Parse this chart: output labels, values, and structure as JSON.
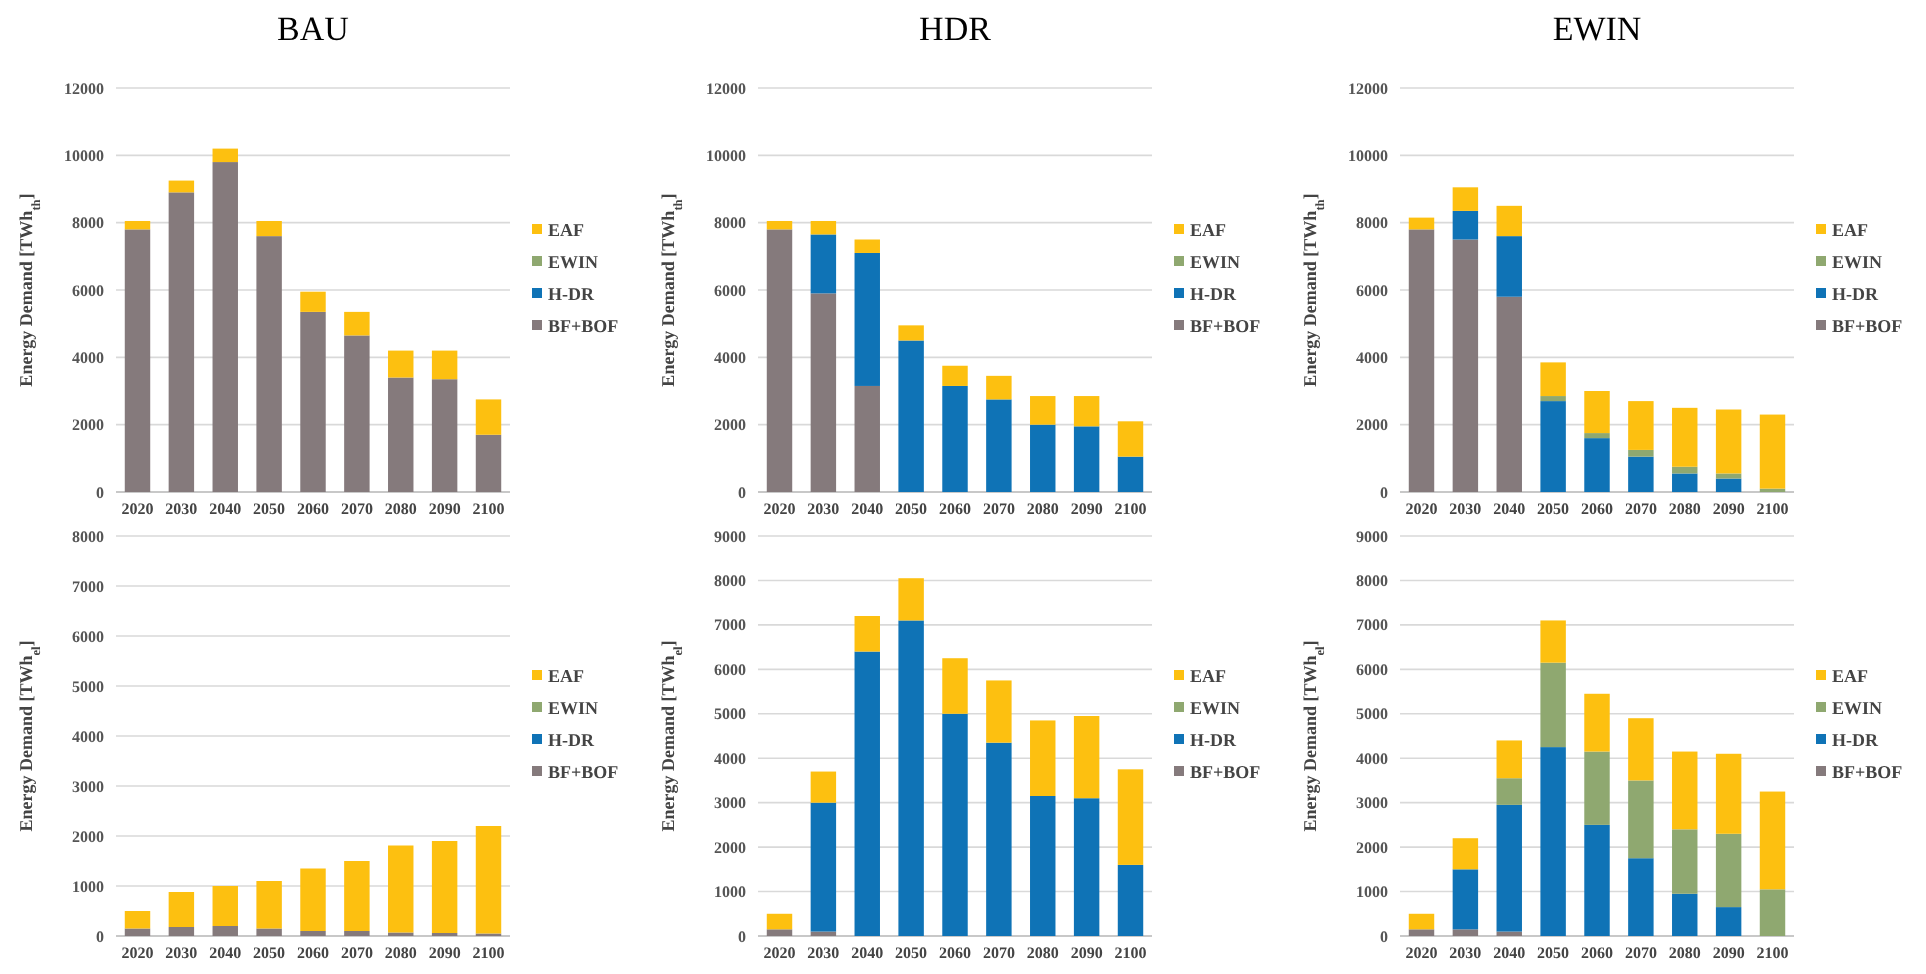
{
  "chart_data": [
    {
      "type": "bar",
      "title": "BAU",
      "ylabel": "Energy Demand [TWh$_{th}$]",
      "categories": [
        "2020",
        "2030",
        "2040",
        "2050",
        "2060",
        "2070",
        "2080",
        "2090",
        "2100"
      ],
      "stacked": true,
      "ylim": [
        0,
        12000
      ],
      "yticks": [
        0,
        2000,
        4000,
        6000,
        8000,
        10000,
        12000
      ],
      "grid": "y",
      "legend": "right",
      "series": [
        {
          "name": "BF+BOF",
          "color": "#857a7c",
          "values": [
            7800,
            8900,
            9800,
            7600,
            5350,
            4650,
            3400,
            3350,
            1700
          ]
        },
        {
          "name": "H-DR",
          "color": "#0f73b6",
          "values": [
            0,
            0,
            0,
            0,
            0,
            0,
            0,
            0,
            0
          ]
        },
        {
          "name": "EWIN",
          "color": "#8fa870",
          "values": [
            0,
            0,
            0,
            0,
            0,
            0,
            0,
            0,
            0
          ]
        },
        {
          "name": "EAF",
          "color": "#fdc010",
          "values": [
            250,
            350,
            400,
            450,
            600,
            700,
            800,
            850,
            1050
          ]
        }
      ]
    },
    {
      "type": "bar",
      "title": "HDR",
      "ylabel": "Energy Demand [TWh$_{th}$]",
      "categories": [
        "2020",
        "2030",
        "2040",
        "2050",
        "2060",
        "2070",
        "2080",
        "2090",
        "2100"
      ],
      "stacked": true,
      "ylim": [
        0,
        12000
      ],
      "yticks": [
        0,
        2000,
        4000,
        6000,
        8000,
        10000,
        12000
      ],
      "grid": "y",
      "legend": "right",
      "series": [
        {
          "name": "BF+BOF",
          "color": "#857a7c",
          "values": [
            7800,
            5900,
            3150,
            0,
            0,
            0,
            0,
            0,
            0
          ]
        },
        {
          "name": "H-DR",
          "color": "#0f73b6",
          "values": [
            0,
            1750,
            3950,
            4500,
            3150,
            2750,
            2000,
            1950,
            1050
          ]
        },
        {
          "name": "EWIN",
          "color": "#8fa870",
          "values": [
            0,
            0,
            0,
            0,
            0,
            0,
            0,
            0,
            0
          ]
        },
        {
          "name": "EAF",
          "color": "#fdc010",
          "values": [
            250,
            400,
            400,
            450,
            600,
            700,
            850,
            900,
            1050
          ]
        }
      ]
    },
    {
      "type": "bar",
      "title": "EWIN",
      "ylabel": "Energy Demand [TWh$_{th}$]",
      "categories": [
        "2020",
        "2030",
        "2040",
        "2050",
        "2060",
        "2070",
        "2080",
        "2090",
        "2100"
      ],
      "stacked": true,
      "ylim": [
        0,
        12000
      ],
      "yticks": [
        0,
        2000,
        4000,
        6000,
        8000,
        10000,
        12000
      ],
      "grid": "y",
      "legend": "right",
      "series": [
        {
          "name": "BF+BOF",
          "color": "#857a7c",
          "values": [
            7800,
            7500,
            5800,
            0,
            0,
            0,
            0,
            0,
            0
          ]
        },
        {
          "name": "H-DR",
          "color": "#0f73b6",
          "values": [
            0,
            850,
            1800,
            2700,
            1600,
            1050,
            550,
            400,
            0
          ]
        },
        {
          "name": "EWIN",
          "color": "#8fa870",
          "values": [
            0,
            0,
            0,
            150,
            150,
            200,
            200,
            150,
            100
          ]
        },
        {
          "name": "EAF",
          "color": "#fdc010",
          "values": [
            350,
            700,
            900,
            1000,
            1250,
            1450,
            1750,
            1900,
            2200
          ]
        }
      ]
    },
    {
      "type": "bar",
      "ylabel": "Energy Demand [TWh$_{el}$]",
      "categories": [
        "2020",
        "2030",
        "2040",
        "2050",
        "2060",
        "2070",
        "2080",
        "2090",
        "2100"
      ],
      "stacked": true,
      "ylim": [
        0,
        8000
      ],
      "yticks": [
        0,
        1000,
        2000,
        3000,
        4000,
        5000,
        6000,
        7000,
        8000
      ],
      "grid": "y",
      "legend": "right",
      "series": [
        {
          "name": "BF+BOF",
          "color": "#857a7c",
          "values": [
            150,
            180,
            200,
            150,
            100,
            100,
            70,
            60,
            50
          ]
        },
        {
          "name": "H-DR",
          "color": "#0f73b6",
          "values": [
            0,
            0,
            0,
            0,
            0,
            0,
            0,
            0,
            0
          ]
        },
        {
          "name": "EWIN",
          "color": "#8fa870",
          "values": [
            0,
            0,
            0,
            0,
            0,
            0,
            0,
            0,
            0
          ]
        },
        {
          "name": "EAF",
          "color": "#fdc010",
          "values": [
            350,
            700,
            800,
            950,
            1250,
            1400,
            1740,
            1840,
            2150
          ]
        }
      ]
    },
    {
      "type": "bar",
      "ylabel": "Energy Demand [TWh$_{el}$]",
      "categories": [
        "2020",
        "2030",
        "2040",
        "2050",
        "2060",
        "2070",
        "2080",
        "2090",
        "2100"
      ],
      "stacked": true,
      "ylim": [
        0,
        9000
      ],
      "yticks": [
        0,
        1000,
        2000,
        3000,
        4000,
        5000,
        6000,
        7000,
        8000,
        9000
      ],
      "grid": "y",
      "legend": "right",
      "series": [
        {
          "name": "BF+BOF",
          "color": "#857a7c",
          "values": [
            150,
            100,
            0,
            0,
            0,
            0,
            0,
            0,
            0
          ]
        },
        {
          "name": "H-DR",
          "color": "#0f73b6",
          "values": [
            0,
            2900,
            6400,
            7100,
            5000,
            4350,
            3150,
            3100,
            1600
          ]
        },
        {
          "name": "EWIN",
          "color": "#8fa870",
          "values": [
            0,
            0,
            0,
            0,
            0,
            0,
            0,
            0,
            0
          ]
        },
        {
          "name": "EAF",
          "color": "#fdc010",
          "values": [
            350,
            700,
            800,
            950,
            1250,
            1400,
            1700,
            1850,
            2150
          ]
        }
      ]
    },
    {
      "type": "bar",
      "ylabel": "Energy Demand [TWh$_{el}$]",
      "categories": [
        "2020",
        "2030",
        "2040",
        "2050",
        "2060",
        "2070",
        "2080",
        "2090",
        "2100"
      ],
      "stacked": true,
      "ylim": [
        0,
        9000
      ],
      "yticks": [
        0,
        1000,
        2000,
        3000,
        4000,
        5000,
        6000,
        7000,
        8000,
        9000
      ],
      "grid": "y",
      "legend": "right",
      "series": [
        {
          "name": "BF+BOF",
          "color": "#857a7c",
          "values": [
            150,
            150,
            100,
            0,
            0,
            0,
            0,
            0,
            0
          ]
        },
        {
          "name": "H-DR",
          "color": "#0f73b6",
          "values": [
            0,
            1350,
            2850,
            4250,
            2500,
            1750,
            950,
            650,
            0
          ]
        },
        {
          "name": "EWIN",
          "color": "#8fa870",
          "values": [
            0,
            0,
            600,
            1900,
            1650,
            1750,
            1450,
            1650,
            1050
          ]
        },
        {
          "name": "EAF",
          "color": "#fdc010",
          "values": [
            350,
            700,
            850,
            950,
            1300,
            1400,
            1750,
            1800,
            2200
          ]
        }
      ]
    }
  ]
}
